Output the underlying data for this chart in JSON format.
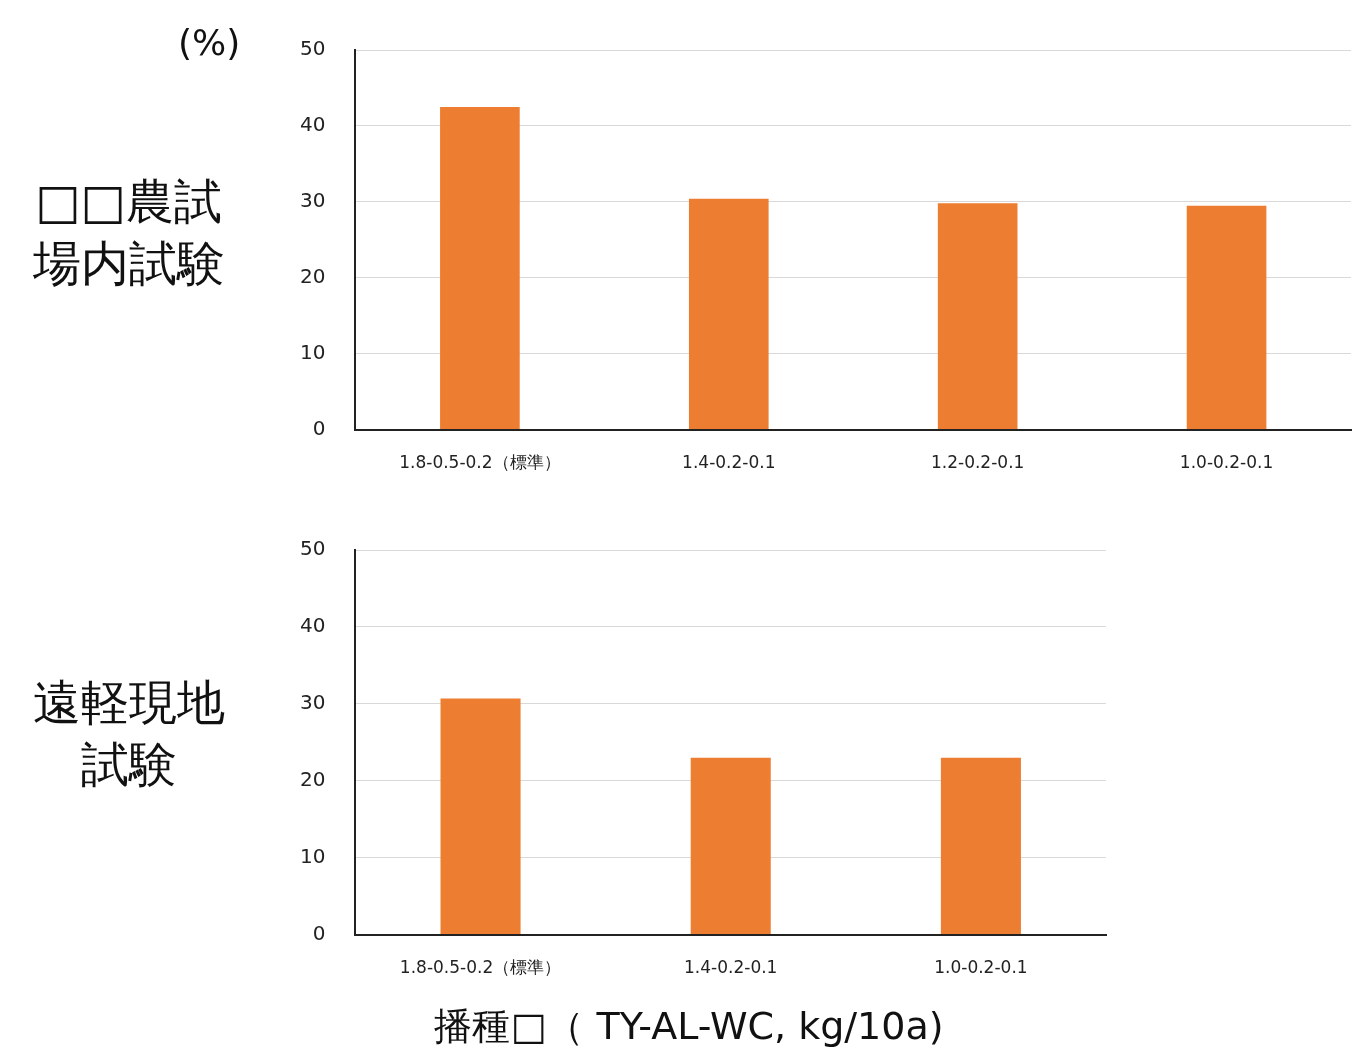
{
  "chart_data": [
    {
      "type": "bar",
      "title": "□□農試場内試験",
      "ylabel": "(%)",
      "categories": [
        "1.8-0.5-0.2（標準）",
        "1.4-0.2-0.1",
        "1.2-0.2-0.1",
        "1.0-0.2-0.1"
      ],
      "values": [
        42.5,
        30.4,
        29.8,
        29.5
      ],
      "color": "#ed7d31",
      "ylim": [
        0,
        50
      ],
      "yticks": [
        0,
        10,
        20,
        30,
        40,
        50
      ],
      "grid": "y",
      "legend": false
    },
    {
      "type": "bar",
      "title": "遠軽現地試験",
      "xlabel": "播種□（ TY-AL-WC, kg/10a)",
      "categories": [
        "1.8-0.5-0.2（標準）",
        "1.4-0.2-0.1",
        "1.0-0.2-0.1"
      ],
      "values": [
        30.7,
        23.0,
        23.0
      ],
      "color": "#ed7d31",
      "ylim": [
        0,
        50
      ],
      "yticks": [
        0,
        10,
        20,
        30,
        40,
        50
      ],
      "grid": "y",
      "legend": false
    }
  ]
}
